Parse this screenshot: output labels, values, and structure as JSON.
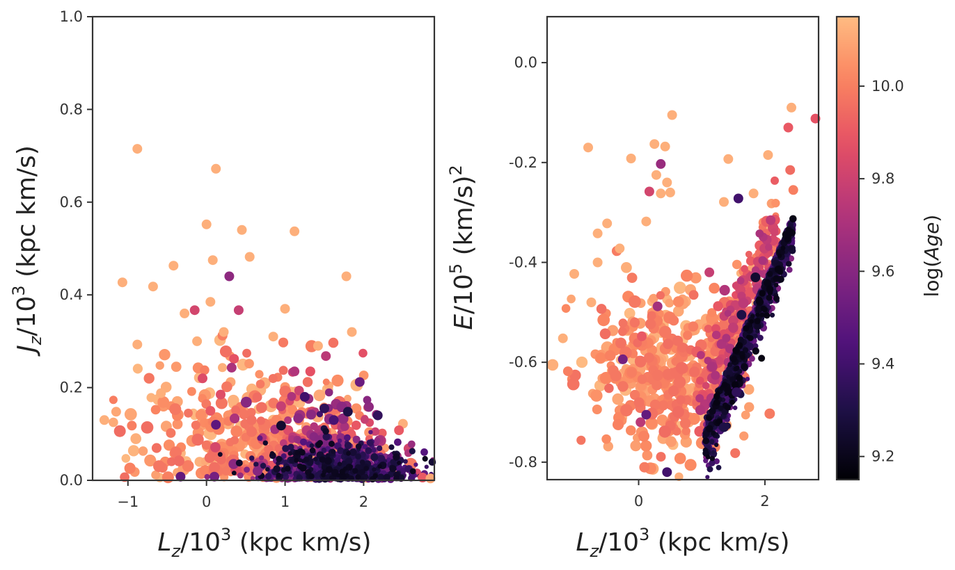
{
  "colors": {
    "magma_stops": [
      "#000004",
      "#1c1044",
      "#4f127b",
      "#812581",
      "#b5367a",
      "#e55064",
      "#fb8761",
      "#fec287",
      "#fcfdbf"
    ],
    "axis": "#333333",
    "background": "#ffffff"
  },
  "chart_data": [
    {
      "type": "scatter",
      "title": "",
      "xlabel_main": "L",
      "xlabel_sub": "z",
      "xlabel_suffix": "/10",
      "xlabel_sup": "3",
      "xlabel_units": " (kpc km/s)",
      "ylabel_main": "J",
      "ylabel_sub": "z",
      "ylabel_suffix": "/10",
      "ylabel_sup": "3",
      "ylabel_units": " (kpc km/s)",
      "xlim": [
        -1.45,
        2.9
      ],
      "ylim": [
        0.0,
        1.0
      ],
      "xticks": [
        {
          "v": -1,
          "label": "−1"
        },
        {
          "v": 0,
          "label": "0"
        },
        {
          "v": 1,
          "label": "1"
        },
        {
          "v": 2,
          "label": "2"
        }
      ],
      "yticks": [
        {
          "v": 0.0,
          "label": "0.0"
        },
        {
          "v": 0.2,
          "label": "0.2"
        },
        {
          "v": 0.4,
          "label": "0.4"
        },
        {
          "v": 0.6,
          "label": "0.6"
        },
        {
          "v": 0.8,
          "label": "0.8"
        },
        {
          "v": 1.0,
          "label": "1.0"
        }
      ],
      "grid": false,
      "points": [
        {
          "x": -0.88,
          "y": 0.715,
          "age": 10.12
        },
        {
          "x": 0.12,
          "y": 0.672,
          "age": 10.12
        },
        {
          "x": 0.0,
          "y": 0.552,
          "age": 10.12
        },
        {
          "x": 0.45,
          "y": 0.54,
          "age": 10.12
        },
        {
          "x": 1.12,
          "y": 0.537,
          "age": 10.12
        },
        {
          "x": 0.55,
          "y": 0.482,
          "age": 10.12
        },
        {
          "x": 0.08,
          "y": 0.475,
          "age": 10.12
        },
        {
          "x": -0.42,
          "y": 0.463,
          "age": 10.12
        },
        {
          "x": 1.78,
          "y": 0.44,
          "age": 10.12
        },
        {
          "x": 0.29,
          "y": 0.44,
          "age": 9.62
        },
        {
          "x": -1.07,
          "y": 0.427,
          "age": 10.12
        },
        {
          "x": -0.68,
          "y": 0.418,
          "age": 10.12
        },
        {
          "x": 0.05,
          "y": 0.385,
          "age": 10.12
        },
        {
          "x": -0.15,
          "y": 0.367,
          "age": 9.82
        },
        {
          "x": 0.41,
          "y": 0.367,
          "age": 9.78
        },
        {
          "x": 1.0,
          "y": 0.37,
          "age": 10.12
        },
        {
          "x": -0.28,
          "y": 0.36,
          "age": 10.12
        },
        {
          "x": 0.22,
          "y": 0.32,
          "age": 10.12
        },
        {
          "x": 0.85,
          "y": 0.31,
          "age": 10.12
        },
        {
          "x": -0.88,
          "y": 0.293,
          "age": 10.12
        },
        {
          "x": -0.12,
          "y": 0.3,
          "age": 10.12
        },
        {
          "x": 1.42,
          "y": 0.29,
          "age": 10.12
        },
        {
          "x": 1.85,
          "y": 0.32,
          "age": 10.12
        },
        {
          "x": 0.35,
          "y": 0.262,
          "age": 9.88
        },
        {
          "x": 1.52,
          "y": 0.268,
          "age": 9.75
        },
        {
          "x": 1.12,
          "y": 0.235,
          "age": 9.72
        },
        {
          "x": 0.32,
          "y": 0.243,
          "age": 9.7
        },
        {
          "x": -0.05,
          "y": 0.22,
          "age": 9.85
        },
        {
          "x": 1.95,
          "y": 0.212,
          "age": 9.52
        },
        {
          "x": -0.58,
          "y": 0.188,
          "age": 10.12
        },
        {
          "x": 0.18,
          "y": 0.185,
          "age": 9.86
        },
        {
          "x": 0.12,
          "y": 0.12,
          "age": 9.48
        },
        {
          "x": 0.05,
          "y": 0.15,
          "age": 9.9
        },
        {
          "x": 1.25,
          "y": 0.18,
          "age": 9.4
        },
        {
          "x": 1.5,
          "y": 0.155,
          "age": 9.35
        },
        {
          "x": 1.62,
          "y": 0.13,
          "age": 9.42
        },
        {
          "x": 1.8,
          "y": 0.148,
          "age": 9.3
        },
        {
          "x": 2.18,
          "y": 0.14,
          "age": 9.36
        },
        {
          "x": -1.3,
          "y": 0.13,
          "age": 10.12
        },
        {
          "x": -1.15,
          "y": 0.148,
          "age": 10.1
        },
        {
          "x": -0.95,
          "y": 0.118,
          "age": 10.0
        },
        {
          "x": 2.5,
          "y": 0.122,
          "age": 10.12
        },
        {
          "x": 2.45,
          "y": 0.108,
          "age": 9.9
        },
        {
          "x": 0.95,
          "y": 0.118,
          "age": 9.25
        },
        {
          "x": 0.65,
          "y": 0.02,
          "age": 9.6
        },
        {
          "x": -0.33,
          "y": 0.008,
          "age": 9.5
        },
        {
          "x": 0.1,
          "y": 0.008,
          "age": 9.55
        },
        {
          "x": 2.75,
          "y": 0.006,
          "age": 9.9
        },
        {
          "x": 2.85,
          "y": 0.004,
          "age": 10.1
        }
      ]
    },
    {
      "type": "scatter",
      "title": "",
      "xlabel_main": "L",
      "xlabel_sub": "z",
      "xlabel_suffix": "/10",
      "xlabel_sup": "3",
      "xlabel_units": " (kpc km/s)",
      "ylabel_main": "E",
      "ylabel_suffix": "/10",
      "ylabel_sup": "5",
      "ylabel_units": " (km/s)",
      "ylabel_sup2": "2",
      "xlim": [
        -1.45,
        2.85
      ],
      "ylim": [
        -0.835,
        0.092
      ],
      "xticks": [
        {
          "v": 0,
          "label": "0"
        },
        {
          "v": 2,
          "label": "2"
        }
      ],
      "yticks": [
        {
          "v": 0.0,
          "label": "0.0"
        },
        {
          "v": -0.2,
          "label": "-0.2"
        },
        {
          "v": -0.4,
          "label": "-0.4"
        },
        {
          "v": -0.6,
          "label": "-0.6"
        },
        {
          "v": -0.8,
          "label": "-0.8"
        }
      ],
      "grid": false,
      "points": [
        {
          "x": 0.53,
          "y": -0.105,
          "age": 10.12
        },
        {
          "x": 2.42,
          "y": -0.09,
          "age": 10.12
        },
        {
          "x": 2.37,
          "y": -0.13,
          "age": 9.9
        },
        {
          "x": 2.8,
          "y": -0.112,
          "age": 9.88
        },
        {
          "x": -0.8,
          "y": -0.17,
          "age": 10.12
        },
        {
          "x": 0.25,
          "y": -0.163,
          "age": 10.12
        },
        {
          "x": 0.42,
          "y": -0.168,
          "age": 10.12
        },
        {
          "x": 2.05,
          "y": -0.185,
          "age": 10.12
        },
        {
          "x": -0.12,
          "y": -0.192,
          "age": 10.12
        },
        {
          "x": 1.42,
          "y": -0.193,
          "age": 10.12
        },
        {
          "x": 0.35,
          "y": -0.203,
          "age": 9.65
        },
        {
          "x": 2.4,
          "y": -0.215,
          "age": 9.95
        },
        {
          "x": 0.28,
          "y": -0.225,
          "age": 10.12
        },
        {
          "x": 0.45,
          "y": -0.24,
          "age": 10.12
        },
        {
          "x": 0.17,
          "y": -0.258,
          "age": 9.82
        },
        {
          "x": 0.5,
          "y": -0.26,
          "age": 10.12
        },
        {
          "x": 0.35,
          "y": -0.262,
          "age": 10.12
        },
        {
          "x": 1.58,
          "y": -0.272,
          "age": 9.4
        },
        {
          "x": 1.82,
          "y": -0.262,
          "age": 10.12
        },
        {
          "x": 1.35,
          "y": -0.279,
          "age": 10.12
        },
        {
          "x": 2.45,
          "y": -0.255,
          "age": 10.0
        },
        {
          "x": 0.12,
          "y": -0.318,
          "age": 10.12
        },
        {
          "x": -0.5,
          "y": -0.322,
          "age": 10.12
        },
        {
          "x": -0.65,
          "y": -0.342,
          "age": 10.12
        },
        {
          "x": -0.3,
          "y": -0.372,
          "age": 10.12
        },
        {
          "x": -0.65,
          "y": -0.4,
          "age": 10.12
        },
        {
          "x": -1.02,
          "y": -0.423,
          "age": 10.12
        },
        {
          "x": 1.12,
          "y": -0.42,
          "age": 9.78
        },
        {
          "x": 0.3,
          "y": -0.488,
          "age": 9.68
        },
        {
          "x": -0.75,
          "y": -0.48,
          "age": 10.12
        },
        {
          "x": -0.25,
          "y": -0.594,
          "age": 9.55
        },
        {
          "x": 0.12,
          "y": -0.705,
          "age": 9.5
        },
        {
          "x": 0.03,
          "y": -0.72,
          "age": 9.75
        },
        {
          "x": -1.2,
          "y": -0.552,
          "age": 10.12
        },
        {
          "x": -1.12,
          "y": -0.618,
          "age": 10.0
        },
        {
          "x": 0.45,
          "y": -0.82,
          "age": 9.4
        },
        {
          "x": 0.05,
          "y": -0.548,
          "age": 9.9
        },
        {
          "x": 1.63,
          "y": -0.505,
          "age": 9.3
        },
        {
          "x": 1.85,
          "y": -0.43,
          "age": 9.25
        },
        {
          "x": 1.55,
          "y": -0.66,
          "age": 9.35
        },
        {
          "x": 1.35,
          "y": -0.73,
          "age": 9.3
        }
      ]
    }
  ],
  "colorbar": {
    "label_prefix": "log",
    "label_var": "Age",
    "range": [
      9.15,
      10.15
    ],
    "ticks": [
      {
        "v": 9.2,
        "label": "9.2"
      },
      {
        "v": 9.4,
        "label": "9.4"
      },
      {
        "v": 9.6,
        "label": "9.6"
      },
      {
        "v": 9.8,
        "label": "9.8"
      },
      {
        "v": 10.0,
        "label": "10.0"
      }
    ]
  }
}
